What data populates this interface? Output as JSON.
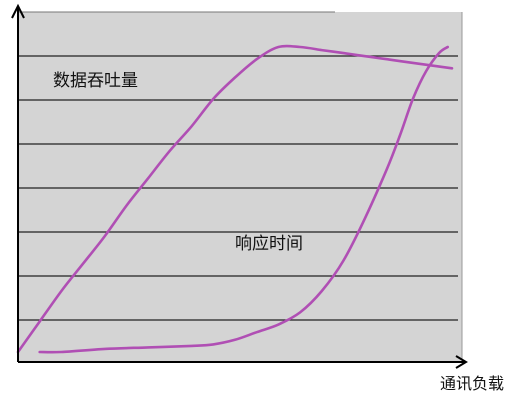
{
  "chart_data": {
    "type": "line",
    "title": "",
    "xlabel": "通讯负载",
    "ylabel": "",
    "xlim": [
      0,
      100
    ],
    "ylim": [
      0,
      100
    ],
    "grid": true,
    "plot_background": "#d4d4d4",
    "series": [
      {
        "name": "数据吞吐量",
        "color": "#b04fb4",
        "x": [
          0,
          5,
          10,
          15,
          20,
          25,
          30,
          35,
          40,
          45,
          50,
          55,
          60,
          65,
          70,
          75,
          80,
          85,
          90,
          95,
          100
        ],
        "y": [
          0,
          10,
          20,
          29,
          38,
          48,
          57,
          66,
          74,
          83,
          90,
          96,
          100,
          100,
          99,
          98,
          97,
          96,
          95,
          94,
          93
        ]
      },
      {
        "name": "响应时间",
        "color": "#b04fb4",
        "x": [
          5,
          10,
          20,
          30,
          40,
          45,
          50,
          55,
          60,
          65,
          70,
          75,
          80,
          85,
          88,
          91,
          94,
          97,
          99
        ],
        "y": [
          0,
          0,
          1,
          1.5,
          2,
          2.5,
          4,
          6.5,
          9,
          13,
          20,
          30,
          44,
          60,
          71,
          83,
          92,
          98,
          100
        ]
      }
    ]
  }
}
